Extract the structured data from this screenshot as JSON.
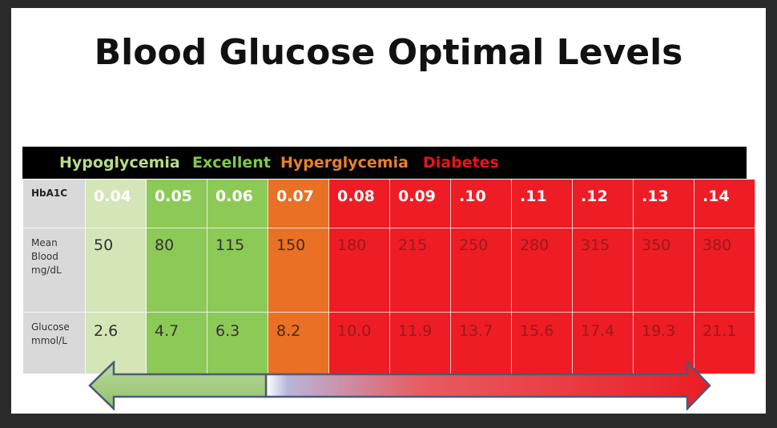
{
  "title": "Blood Glucose Optimal Levels",
  "legend": {
    "hypoglycemia": "Hypoglycemia",
    "excellent": "Excellent",
    "hyperglycemia": "Hyperglycemia",
    "diabetes": "Diabetes"
  },
  "colors": {
    "hypoglycemia": "#d4e6b8",
    "excellent": "#8dc957",
    "hyperglycemia": "#e97025",
    "diabetes": "#ee1c24"
  },
  "rows": {
    "hba1c_label": "HbA1C",
    "mean_label_1": "Mean",
    "mean_label_2": "Blood",
    "mean_label_3": "mg/dL",
    "glucose_label_1": "Glucose",
    "glucose_label_2": "mmol/L"
  },
  "hba1c": [
    "0.04",
    "0.05",
    "0.06",
    "0.07",
    "0.08",
    "0.09",
    ".10",
    ".11",
    ".12",
    ".13",
    ".14"
  ],
  "mean_blood": [
    "50",
    "80",
    "115",
    "150",
    "180",
    "215",
    "250",
    "280",
    "315",
    "350",
    "380"
  ],
  "glucose": [
    "2.6",
    "4.7",
    "6.3",
    "8.2",
    "10.0",
    "11.9",
    "13.7",
    "15.6",
    "17.4",
    "19.3",
    "21.1"
  ]
}
